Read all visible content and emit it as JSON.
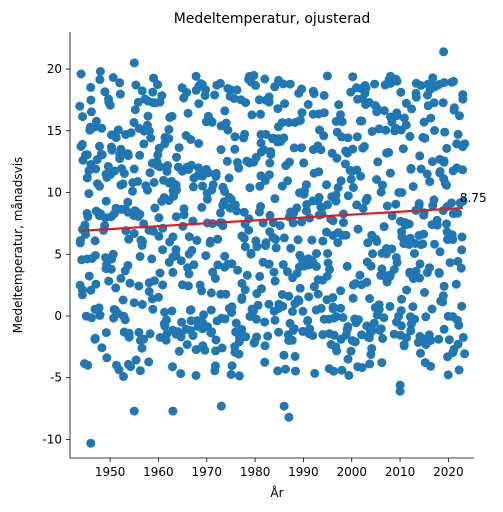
{
  "chart_data": {
    "type": "scatter",
    "title": "Medeltemperatur, ojusterad",
    "xlabel": "År",
    "ylabel": "Medeltemperatur, månadsvis",
    "xlim": [
      1941.7,
      2025.3
    ],
    "ylim": [
      -11.5,
      23.0
    ],
    "x_ticks": [
      1950,
      1960,
      1970,
      1980,
      1990,
      2000,
      2010,
      2020
    ],
    "y_ticks": [
      -10,
      -5,
      0,
      5,
      10,
      15,
      20
    ],
    "points": {
      "x_range": [
        1944,
        2023
      ],
      "y_range": [
        -10.3,
        21.4
      ],
      "color": "#1f77b4",
      "values_per_year": 12
    },
    "trend_line": {
      "x": [
        1944,
        2023
      ],
      "y": [
        6.9,
        8.75
      ],
      "color": "#e41a1c"
    },
    "annotation": {
      "text": "8.75",
      "x": 2023,
      "y": 8.75
    },
    "outliers": [
      [
        1946,
        -10.3
      ],
      [
        1955,
        -7.7
      ],
      [
        1963,
        -7.7
      ],
      [
        1986,
        -7.3
      ],
      [
        1987,
        -8.2
      ],
      [
        1973,
        -7.3
      ],
      [
        1955,
        20.5
      ],
      [
        2019,
        21.4
      ],
      [
        1944,
        19.6
      ],
      [
        1948,
        19.8
      ],
      [
        2010,
        -5.6
      ],
      [
        2010,
        -6.1
      ]
    ]
  }
}
